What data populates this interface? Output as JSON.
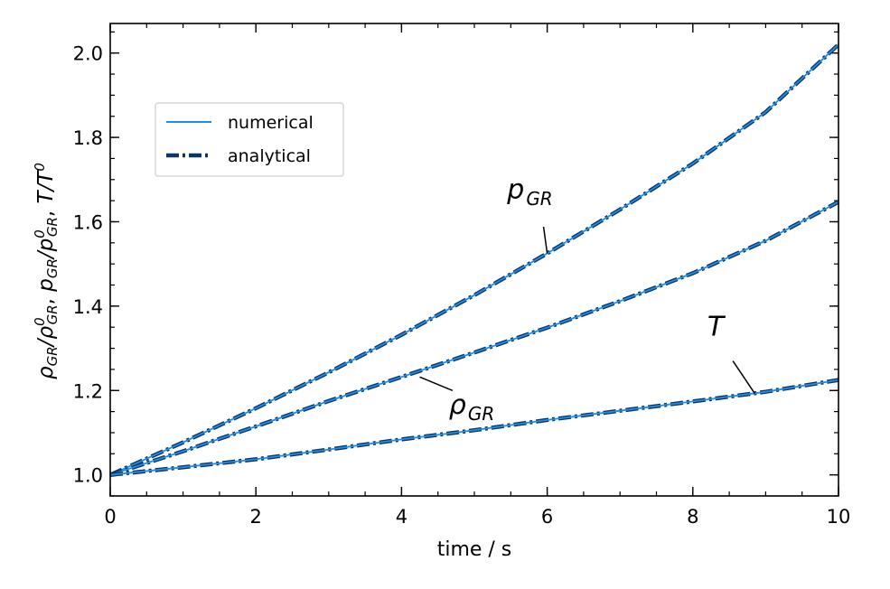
{
  "chart_data": {
    "type": "line",
    "xlabel": "time / s",
    "ylabel": "ρGR/ρ0GR,   pGR/p0GR,   T/T0",
    "xlim": [
      0,
      10
    ],
    "ylim": [
      0.95,
      2.07
    ],
    "x_ticks": [
      0,
      2,
      4,
      6,
      8,
      10
    ],
    "x_tick_labels": [
      "0",
      "2",
      "4",
      "6",
      "8",
      "10"
    ],
    "y_ticks": [
      1.0,
      1.2,
      1.4,
      1.6,
      1.8,
      2.0
    ],
    "y_tick_labels": [
      "1.0",
      "1.2",
      "1.4",
      "1.6",
      "1.8",
      "2.0"
    ],
    "minor_x_step": 0.5,
    "minor_y_step": 0.05,
    "grid": false,
    "legend": {
      "placement": "upper-left",
      "entries": [
        {
          "label": "numerical",
          "style": "solid",
          "color": "#1f8ee8"
        },
        {
          "label": "analytical",
          "style": "dashdot",
          "color": "#0d3566"
        }
      ]
    },
    "x": [
      0,
      1,
      2,
      3,
      4,
      5,
      6,
      7,
      8,
      9,
      10
    ],
    "curves": [
      {
        "key": "p_GR",
        "values": [
          1.0,
          1.077,
          1.158,
          1.243,
          1.332,
          1.426,
          1.525,
          1.629,
          1.738,
          1.86,
          2.02
        ]
      },
      {
        "key": "rho_GR",
        "values": [
          1.0,
          1.056,
          1.115,
          1.175,
          1.232,
          1.29,
          1.349,
          1.412,
          1.478,
          1.555,
          1.647
        ]
      },
      {
        "key": "T",
        "values": [
          1.0,
          1.018,
          1.037,
          1.06,
          1.084,
          1.106,
          1.13,
          1.152,
          1.174,
          1.197,
          1.225
        ]
      }
    ],
    "annotations": [
      {
        "key": "p_GR",
        "main": "p",
        "sub": "GR",
        "text_x": 5.45,
        "text_y": 1.655,
        "line_from": [
          5.95,
          1.588
        ],
        "line_to": [
          6.0,
          1.525
        ]
      },
      {
        "key": "rho_GR",
        "main": "ρ",
        "sub": "GR",
        "text_x": 4.65,
        "text_y": 1.145,
        "line_from": [
          4.7,
          1.2
        ],
        "line_to": [
          4.25,
          1.232
        ]
      },
      {
        "key": "T",
        "main": "T",
        "sub": "",
        "text_x": 8.2,
        "text_y": 1.33,
        "line_from": [
          8.55,
          1.27
        ],
        "line_to": [
          8.85,
          1.193
        ]
      }
    ],
    "colors": {
      "numerical": "#1f8ee8",
      "analytical": "#0d3566"
    }
  }
}
